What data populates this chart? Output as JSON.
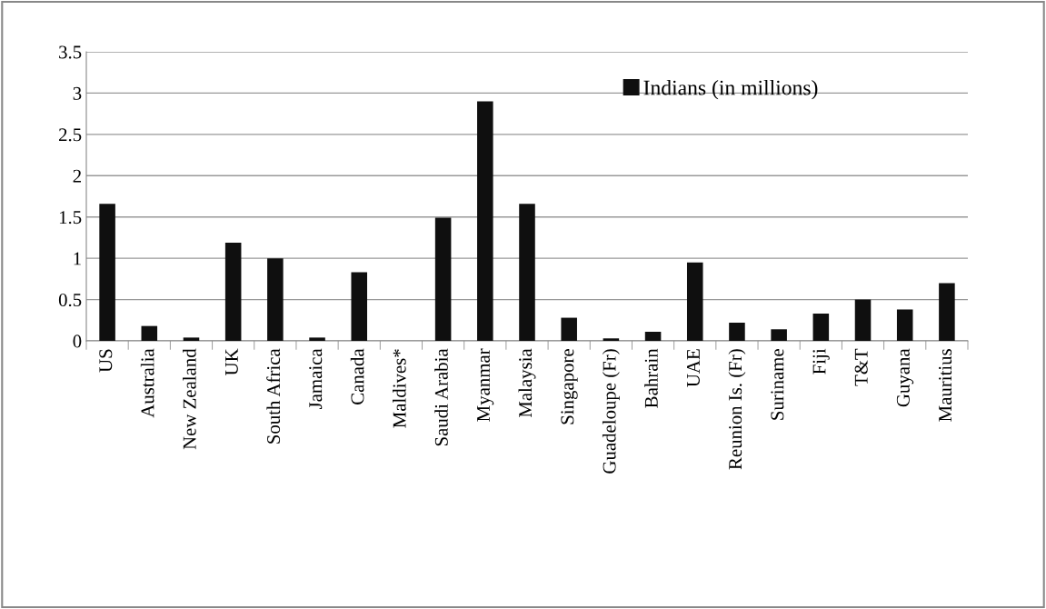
{
  "chart_data": {
    "type": "bar",
    "categories": [
      "US",
      "Australia",
      "New Zealand",
      "UK",
      "South Africa",
      "Jamaica",
      "Canada",
      "Maldives*",
      "Saudi Arabia",
      "Myanmar",
      "Malaysia",
      "Singapore",
      "Guadeloupe (Fr)",
      "Bahrain",
      "UAE",
      "Reunion Is. (Fr)",
      "Suriname",
      "Fiji",
      "T&T",
      "Guyana",
      "Mauritius"
    ],
    "series": [
      {
        "name": "Indians (in millions)",
        "color": "#0f0f0f",
        "values": [
          1.66,
          0.18,
          0.04,
          1.19,
          1.0,
          0.04,
          0.83,
          0,
          1.49,
          2.9,
          1.66,
          0.28,
          0.03,
          0.11,
          0.95,
          0.22,
          0.14,
          0.33,
          0.5,
          0.38,
          0.7
        ]
      }
    ],
    "ylim": [
      0,
      3.5
    ],
    "yticks": [
      0,
      0.5,
      1,
      1.5,
      2,
      2.5,
      3,
      3.5
    ],
    "grid": "y",
    "legend": "top"
  }
}
